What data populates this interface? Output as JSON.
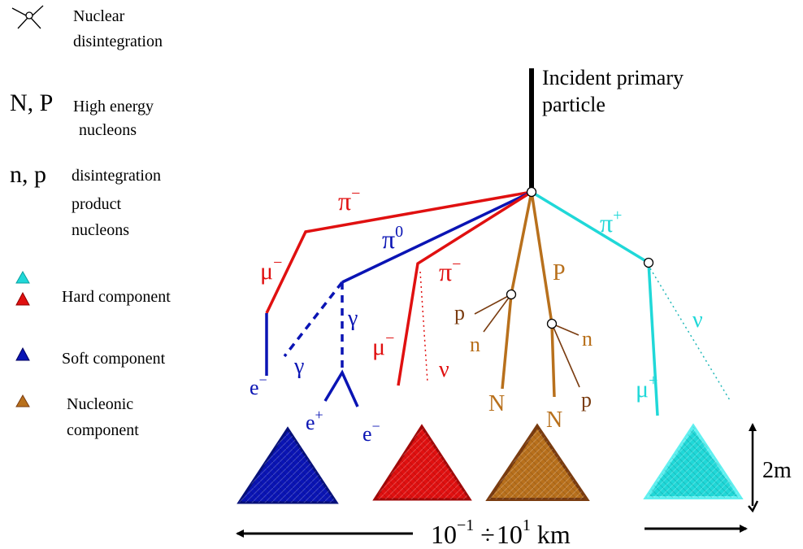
{
  "legend": {
    "nuclear_disintegration": {
      "line1": "Nuclear",
      "line2": "disintegration"
    },
    "high_energy": {
      "symbol": "N, P",
      "line1": "High energy",
      "line2": "nucleons"
    },
    "product": {
      "symbol": "n, p",
      "line1": "disintegration",
      "line2": "product",
      "line3": "nucleons"
    },
    "hard": "Hard component",
    "soft": "Soft component",
    "nucleonic": {
      "line1": "Nucleonic",
      "line2": "component"
    }
  },
  "primary": {
    "line1": "Incident primary",
    "line2": "particle"
  },
  "particles": {
    "pi_minus_left": {
      "base": "π",
      "sup": "−"
    },
    "pi_zero": {
      "base": "π",
      "sup": "0"
    },
    "pi_minus_mid": {
      "base": "π",
      "sup": "−"
    },
    "pi_plus": {
      "base": "π",
      "sup": "+"
    },
    "big_p": "P",
    "mu_minus_left": {
      "base": "μ",
      "sup": "−"
    },
    "mu_minus_mid": {
      "base": "μ",
      "sup": "−"
    },
    "mu_plus": {
      "base": "μ",
      "sup": "+"
    },
    "gamma_left": "γ",
    "gamma_right": "γ",
    "nu_mid": "ν",
    "nu_right": "ν",
    "e_minus_left": {
      "base": "e",
      "sup": "−"
    },
    "e_plus": {
      "base": "e",
      "sup": "+"
    },
    "e_minus_right": {
      "base": "e",
      "sup": "−"
    },
    "small_p_left": "p",
    "small_n_left": "n",
    "small_n_right": "n",
    "small_p_right": "p",
    "big_n_left": "N",
    "big_n_right": "N"
  },
  "scale": {
    "height": "2m",
    "range_base_a": "10",
    "range_sup_a": "−1",
    "range_sep": "÷",
    "range_base_b": "10",
    "range_sup_b": "1",
    "range_unit": "km"
  },
  "colors": {
    "soft": "#0a14b4",
    "hard_red": "#e01010",
    "hard_cyan": "#20d8d8",
    "nucleon": "#b8701c",
    "nucleon_dark": "#7a3c10",
    "primary": "#000000"
  }
}
